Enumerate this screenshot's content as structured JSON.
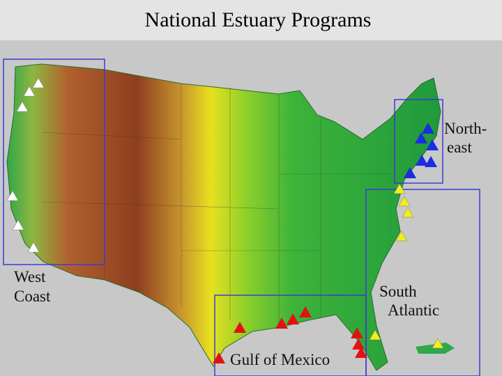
{
  "title": "National Estuary Programs",
  "regions": [
    {
      "label": [
        "West",
        "Coast"
      ]
    },
    {
      "label": [
        "North-",
        "east"
      ]
    },
    {
      "label": [
        "South",
        "Atlantic"
      ]
    },
    {
      "label": [
        "Gulf of Mexico"
      ]
    }
  ]
}
